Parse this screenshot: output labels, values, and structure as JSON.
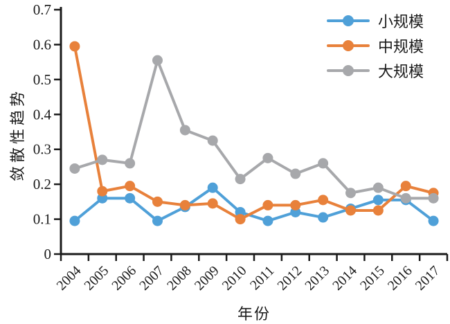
{
  "chart_data": {
    "type": "line",
    "title": "",
    "xlabel": "年份",
    "ylabel": "敛散性趋势",
    "x": [
      "2004",
      "2005",
      "2006",
      "2007",
      "2008",
      "2009",
      "2010",
      "2011",
      "2012",
      "2013",
      "2014",
      "2015",
      "2016",
      "2017"
    ],
    "ylim": [
      0,
      0.7
    ],
    "ytick_labels": [
      "0",
      "0.1",
      "0.2",
      "0.3",
      "0.4",
      "0.5",
      "0.6",
      "0.7"
    ],
    "yticks": [
      0,
      0.1,
      0.2,
      0.3,
      0.4,
      0.5,
      0.6,
      0.7
    ],
    "grid": false,
    "legend_position": "top-right",
    "series": [
      {
        "name": "小规模",
        "color": "#4FA0D8",
        "values": [
          0.095,
          0.16,
          0.16,
          0.095,
          0.135,
          0.19,
          0.12,
          0.095,
          0.12,
          0.105,
          0.13,
          0.155,
          0.155,
          0.095
        ]
      },
      {
        "name": "中规模",
        "color": "#E8813B",
        "values": [
          0.595,
          0.18,
          0.195,
          0.15,
          0.14,
          0.145,
          0.1,
          0.14,
          0.14,
          0.155,
          0.125,
          0.125,
          0.195,
          0.175
        ]
      },
      {
        "name": "大规模",
        "color": "#A7A8AB",
        "values": [
          0.245,
          0.27,
          0.26,
          0.555,
          0.355,
          0.325,
          0.215,
          0.275,
          0.23,
          0.26,
          0.175,
          0.19,
          0.16,
          0.16
        ]
      }
    ]
  },
  "colors": {
    "axis": "#1a1a1a",
    "background": "#ffffff"
  }
}
